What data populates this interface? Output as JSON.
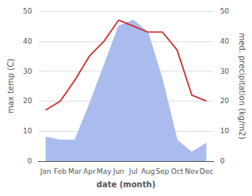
{
  "chart_data": {
    "type": "line",
    "xlabel": "date (month)",
    "ylabel": "max temp (C)",
    "y2label": "med. precipitation (kg/m2)",
    "categories": [
      "Jan",
      "Feb",
      "Mar",
      "Apr",
      "May",
      "Jun",
      "Jul",
      "Aug",
      "Sep",
      "Oct",
      "Nov",
      "Dec"
    ],
    "series": [
      {
        "type": "area",
        "color": "#aabbee",
        "values": [
          8,
          7,
          7,
          19,
          32,
          45,
          47,
          43,
          27,
          7,
          3,
          6
        ]
      },
      {
        "type": "line",
        "color": "#cc3333",
        "axis": "y2",
        "values": [
          17,
          20,
          27,
          35,
          40,
          47,
          45,
          43,
          43,
          37,
          22,
          20
        ]
      }
    ],
    "ylim": [
      0,
      50
    ],
    "yticks": [
      0,
      10,
      20,
      30,
      40,
      50
    ],
    "y2lim": [
      0,
      50
    ],
    "y2ticks": [
      0,
      10,
      20,
      30,
      40,
      50
    ],
    "grid": true
  }
}
